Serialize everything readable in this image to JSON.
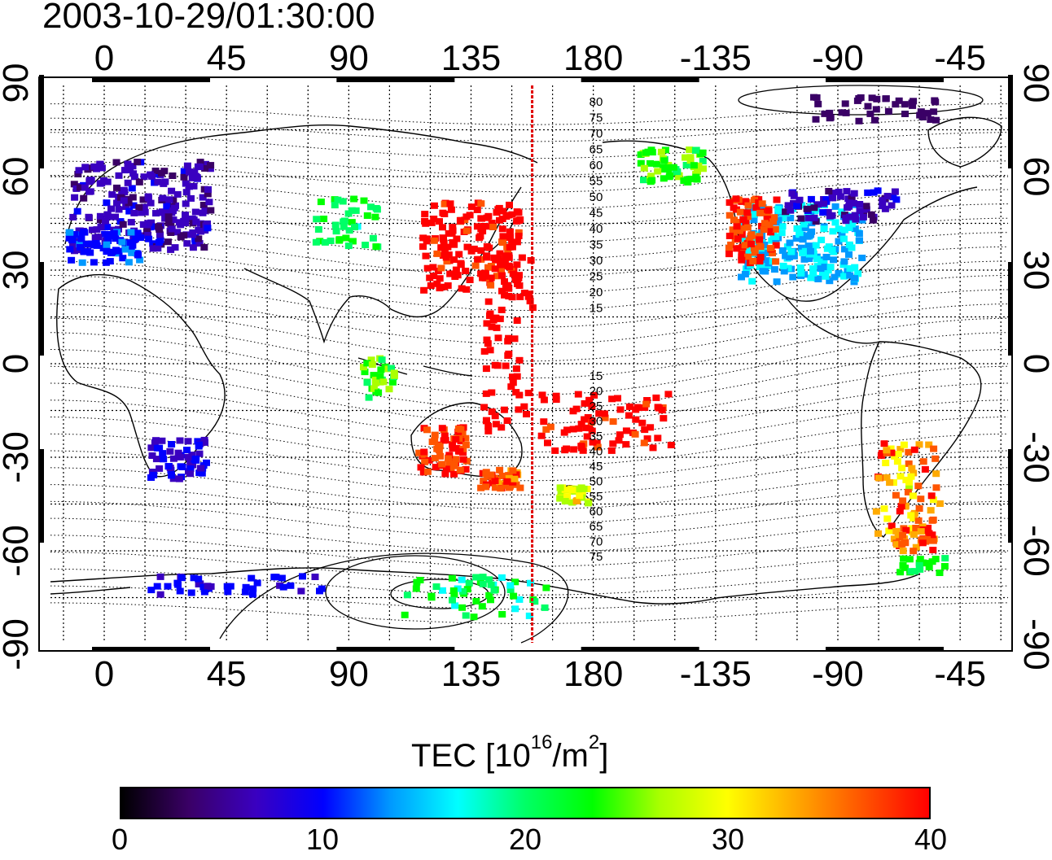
{
  "title": "2003-10-29/01:30:00",
  "map": {
    "top_lon_labels": [
      "0",
      "45",
      "90",
      "135",
      "180",
      "-135",
      "-90",
      "-45"
    ],
    "bottom_lon_labels": [
      "0",
      "45",
      "90",
      "135",
      "180",
      "-135",
      "-90",
      "-45"
    ],
    "left_lat_labels": [
      "90",
      "60",
      "30",
      "0",
      "-30",
      "-60",
      "-90"
    ],
    "right_lat_labels": [
      "90",
      "60",
      "30",
      "0",
      "-30",
      "-60",
      "-90"
    ],
    "contour_labels_upper": [
      "80",
      "75",
      "70",
      "65",
      "60",
      "55",
      "50",
      "45",
      "40",
      "35",
      "30",
      "25",
      "20",
      "15"
    ],
    "contour_labels_lower": [
      "15",
      "20",
      "25",
      "30",
      "35",
      "40",
      "45",
      "50",
      "55",
      "60",
      "65",
      "70",
      "75"
    ],
    "terminator_longitude": 157.5
  },
  "colorbar": {
    "title": "TEC  [10",
    "title_sup1": "16",
    "title_mid": "/m",
    "title_sup2": "2",
    "title_end": "]",
    "ticks": [
      "0",
      "10",
      "20",
      "30",
      "40"
    ],
    "range": [
      0,
      40
    ],
    "colors": [
      "#000000",
      "#3a0066",
      "#3a00c0",
      "#0000ff",
      "#0099ff",
      "#00ffff",
      "#00ff66",
      "#00ff00",
      "#aaff00",
      "#ffff00",
      "#ffaa00",
      "#ff5500",
      "#ff0000"
    ]
  }
}
